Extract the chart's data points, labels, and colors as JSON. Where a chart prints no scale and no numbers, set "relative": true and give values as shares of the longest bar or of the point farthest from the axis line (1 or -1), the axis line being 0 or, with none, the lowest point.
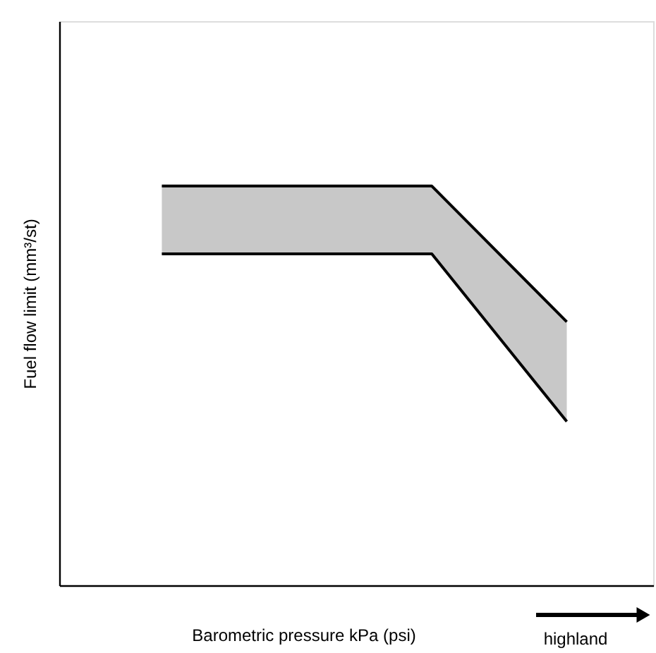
{
  "chart_data": {
    "type": "area",
    "relative": true,
    "xlabel": "Barometric pressure kPa (psi)",
    "ylabel": "Fuel flow limit (mm³/st)",
    "categories": [
      null,
      null,
      null,
      null
    ],
    "grid": false,
    "tick_labels": false,
    "series": [
      {
        "color": "#c8c8c8",
        "values": [
          1,
          1,
          1,
          0.66
        ]
      },
      {
        "type": "line",
        "color": "#000000",
        "values": [
          0.83,
          0.83,
          0.83,
          0.41
        ]
      }
    ],
    "annotations": [
      "highland"
    ]
  }
}
